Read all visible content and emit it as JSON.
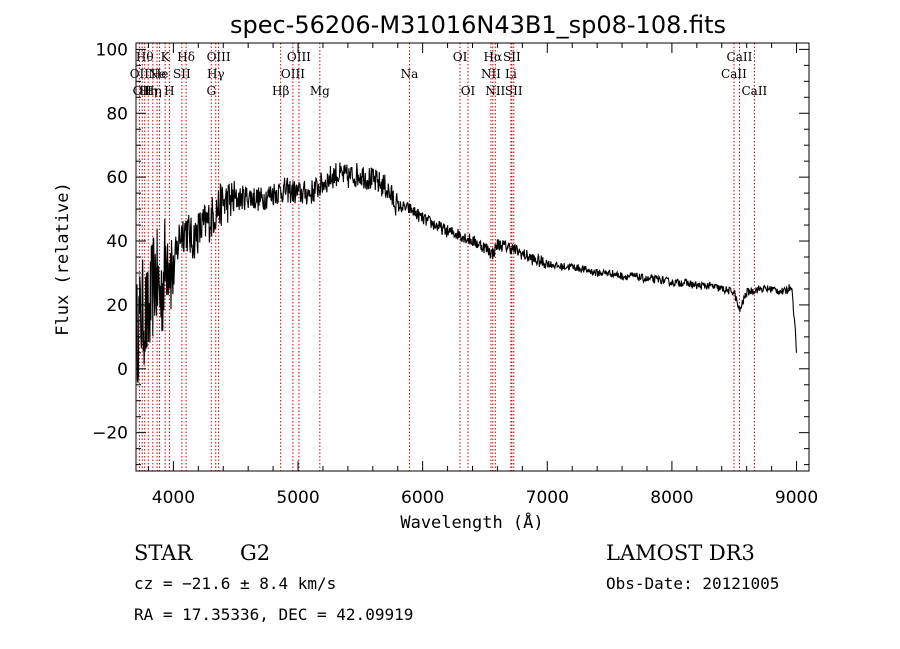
{
  "chart_data": {
    "type": "line",
    "title": "spec-56206-M31016N43B1_sp08-108.fits",
    "xlabel": "Wavelength (Å)",
    "ylabel": "Flux (relative)",
    "xlim": [
      3700,
      9100
    ],
    "ylim": [
      -32,
      102
    ],
    "xticks": [
      4000,
      5000,
      6000,
      7000,
      8000,
      9000
    ],
    "yticks": [
      -20,
      0,
      20,
      40,
      60,
      80,
      100
    ],
    "grid": false,
    "series": [
      {
        "name": "spectrum",
        "color": "#000000",
        "x": [
          3700,
          3750,
          3800,
          3850,
          3900,
          3950,
          4000,
          4050,
          4100,
          4150,
          4200,
          4250,
          4300,
          4350,
          4400,
          4500,
          4600,
          4700,
          4800,
          4900,
          5000,
          5100,
          5200,
          5300,
          5400,
          5500,
          5600,
          5700,
          5800,
          5900,
          6000,
          6100,
          6200,
          6300,
          6400,
          6500,
          6562,
          6600,
          6700,
          6800,
          6900,
          7000,
          7100,
          7200,
          7300,
          7400,
          7500,
          7600,
          7700,
          7800,
          7900,
          8000,
          8100,
          8200,
          8300,
          8400,
          8500,
          8542,
          8600,
          8700,
          8800,
          8900,
          8960,
          8990,
          9000
        ],
        "values": [
          10,
          18,
          15,
          30,
          22,
          38,
          30,
          42,
          44,
          40,
          43,
          45,
          47,
          50,
          52,
          53,
          54,
          53,
          55,
          56,
          55,
          55,
          58,
          61,
          60,
          61,
          59,
          57,
          51,
          50,
          47,
          45,
          43,
          42,
          40,
          38,
          36,
          39,
          38,
          36,
          34,
          33,
          32,
          32,
          31,
          30,
          30,
          29,
          29,
          28,
          28,
          27,
          27,
          26,
          26,
          25,
          24,
          18,
          24,
          25,
          25,
          24,
          26,
          12,
          5
        ]
      }
    ],
    "emission_lines": [
      {
        "wavelength": 3727,
        "label": "OII",
        "row": 1
      },
      {
        "wavelength": 3750,
        "label": "OII",
        "row": 2
      },
      {
        "wavelength": 3770,
        "label": "Hθ",
        "row": 0
      },
      {
        "wavelength": 3798,
        "label": "Hη",
        "row": 2
      },
      {
        "wavelength": 3835,
        "label": "Hη",
        "row": 2
      },
      {
        "wavelength": 3869,
        "label": "Ne",
        "row": 1
      },
      {
        "wavelength": 3889,
        "label": "He",
        "row": 1
      },
      {
        "wavelength": 3934,
        "label": "K",
        "row": 0
      },
      {
        "wavelength": 3968,
        "label": "H",
        "row": 2
      },
      {
        "wavelength": 4068,
        "label": "SII",
        "row": 1
      },
      {
        "wavelength": 4102,
        "label": "Hδ",
        "row": 0
      },
      {
        "wavelength": 4304,
        "label": "G",
        "row": 2
      },
      {
        "wavelength": 4340,
        "label": "Hγ",
        "row": 1
      },
      {
        "wavelength": 4363,
        "label": "OIII",
        "row": 0
      },
      {
        "wavelength": 4861,
        "label": "Hβ",
        "row": 2
      },
      {
        "wavelength": 4959,
        "label": "OIII",
        "row": 1
      },
      {
        "wavelength": 5007,
        "label": "OIII",
        "row": 0
      },
      {
        "wavelength": 5175,
        "label": "Mg",
        "row": 2
      },
      {
        "wavelength": 5894,
        "label": "Na",
        "row": 1
      },
      {
        "wavelength": 6300,
        "label": "OI",
        "row": 0
      },
      {
        "wavelength": 6364,
        "label": "OI",
        "row": 2
      },
      {
        "wavelength": 6548,
        "label": "NII",
        "row": 1
      },
      {
        "wavelength": 6563,
        "label": "Hα",
        "row": 0
      },
      {
        "wavelength": 6583,
        "label": "NII",
        "row": 2
      },
      {
        "wavelength": 6708,
        "label": "Li",
        "row": 1
      },
      {
        "wavelength": 6716,
        "label": "SII",
        "row": 0
      },
      {
        "wavelength": 6731,
        "label": "SII",
        "row": 2
      },
      {
        "wavelength": 8498,
        "label": "CaII",
        "row": 1
      },
      {
        "wavelength": 8542,
        "label": "CaII",
        "row": 0
      },
      {
        "wavelength": 8662,
        "label": "CaII",
        "row": 2
      }
    ]
  },
  "info": {
    "object_class": "STAR",
    "subclass": "G2",
    "redshift_text": "cz = −21.6 ± 8.4 km/s",
    "coords_text": "RA =  17.35336, DEC =  42.09919",
    "survey": "LAMOST DR3",
    "obs_date_text": "Obs-Date: 20121005"
  },
  "colors": {
    "line_marker": "#cc0000",
    "spectrum": "#000000",
    "axes": "#000000"
  }
}
